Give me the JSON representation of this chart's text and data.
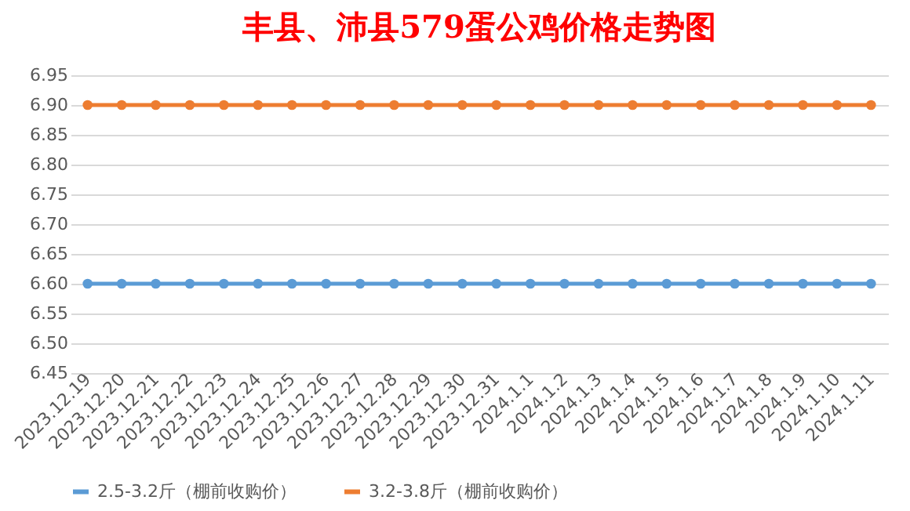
{
  "chart_data": {
    "type": "line",
    "title": "丰县、沛县579蛋公鸡价格走势图",
    "categories": [
      "2023.12.19",
      "2023.12.20",
      "2023.12.21",
      "2023.12.22",
      "2023.12.23",
      "2023.12.24",
      "2023.12.25",
      "2023.12.26",
      "2023.12.27",
      "2023.12.28",
      "2023.12.29",
      "2023.12.30",
      "2023.12.31",
      "2024.1.1",
      "2024.1.2",
      "2024.1.3",
      "2024.1.4",
      "2024.1.5",
      "2024.1.6",
      "2024.1.7",
      "2024.1.8",
      "2024.1.9",
      "2024.1.10",
      "2024.1.11"
    ],
    "series": [
      {
        "name": "2.5-3.2斤（棚前收购价）",
        "color": "#5b9bd5",
        "values": [
          6.6,
          6.6,
          6.6,
          6.6,
          6.6,
          6.6,
          6.6,
          6.6,
          6.6,
          6.6,
          6.6,
          6.6,
          6.6,
          6.6,
          6.6,
          6.6,
          6.6,
          6.6,
          6.6,
          6.6,
          6.6,
          6.6,
          6.6,
          6.6
        ]
      },
      {
        "name": "3.2-3.8斤（棚前收购价）",
        "color": "#ed7d31",
        "values": [
          6.9,
          6.9,
          6.9,
          6.9,
          6.9,
          6.9,
          6.9,
          6.9,
          6.9,
          6.9,
          6.9,
          6.9,
          6.9,
          6.9,
          6.9,
          6.9,
          6.9,
          6.9,
          6.9,
          6.9,
          6.9,
          6.9,
          6.9,
          6.9
        ]
      }
    ],
    "ylim": [
      6.45,
      6.95
    ],
    "yticks": [
      6.45,
      {
        "value": 6.5,
        "label": "6.50"
      },
      6.55,
      {
        "value": 6.6,
        "label": "6.60"
      },
      6.65,
      {
        "value": 6.7,
        "label": "6.70"
      },
      6.75,
      {
        "value": 6.8,
        "label": "6.80"
      },
      6.85,
      {
        "value": 6.9,
        "label": "6.90"
      },
      6.95
    ],
    "grid": "y",
    "legend": "bottom",
    "marker": "circle",
    "line_style": "solid"
  }
}
